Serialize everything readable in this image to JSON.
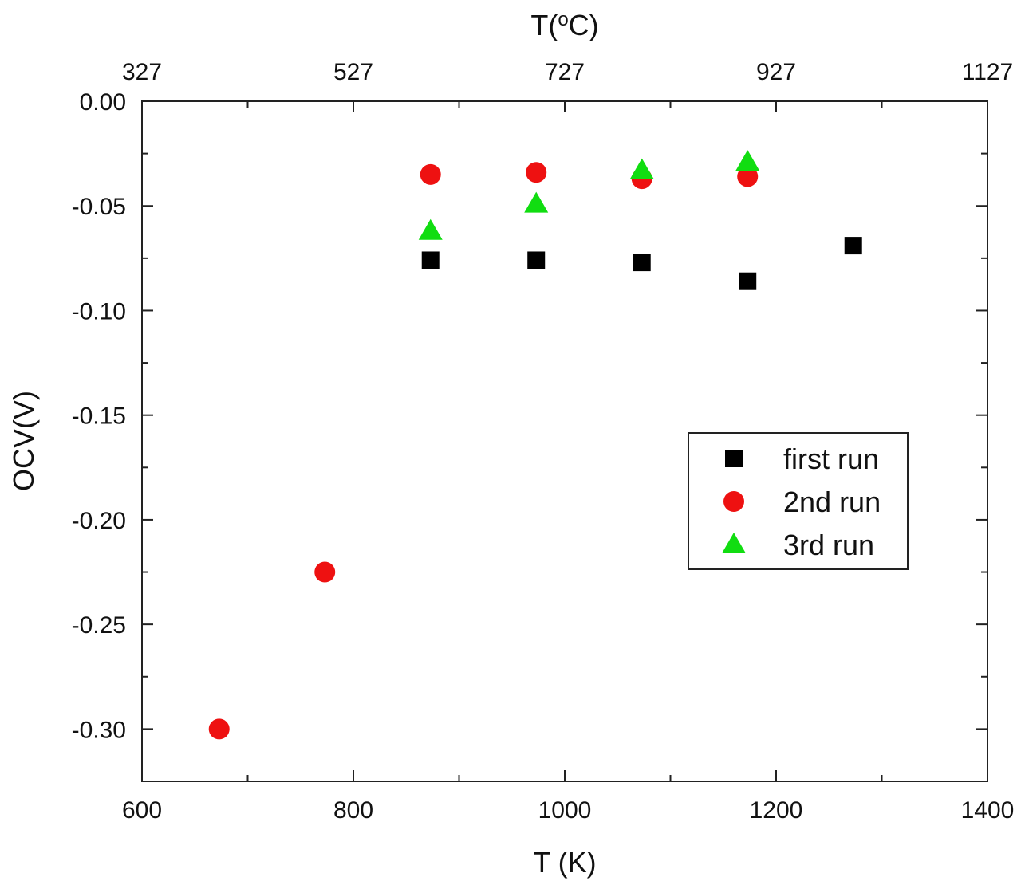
{
  "chart_data": {
    "type": "scatter",
    "title": "",
    "xlabel": "T (K)",
    "ylabel": "OCV(V)",
    "top_xlabel_prefix": "T(",
    "top_xlabel_sup": "o",
    "top_xlabel_suffix": "C)",
    "xlim": [
      600,
      1400
    ],
    "ylim": [
      -0.325,
      0.0
    ],
    "xticks": [
      600,
      800,
      1000,
      1200,
      1400
    ],
    "xtick_labels": [
      "600",
      "800",
      "1000",
      "1200",
      "1400"
    ],
    "top_xtick_labels": [
      "327",
      "527",
      "727",
      "927",
      "1127"
    ],
    "yticks": [
      0,
      -0.05,
      -0.1,
      -0.15,
      -0.2,
      -0.25,
      -0.3
    ],
    "ytick_labels": [
      "0.00",
      "-0.05",
      "-0.10",
      "-0.15",
      "-0.20",
      "-0.25",
      "-0.30"
    ],
    "grid": false,
    "legend_position": "center-right",
    "series": [
      {
        "name": "first run",
        "marker": "square",
        "color": "#000000",
        "x": [
          873,
          973,
          1073,
          1173,
          1273
        ],
        "y": [
          -0.076,
          -0.076,
          -0.077,
          -0.086,
          -0.069
        ]
      },
      {
        "name": "2nd run",
        "marker": "circle",
        "color": "#ee1111",
        "x": [
          673,
          773,
          873,
          973,
          1073,
          1173
        ],
        "y": [
          -0.3,
          -0.225,
          -0.035,
          -0.034,
          -0.037,
          -0.036
        ]
      },
      {
        "name": "3rd run",
        "marker": "triangle",
        "color": "#11dd11",
        "x": [
          873,
          973,
          1073,
          1173
        ],
        "y": [
          -0.062,
          -0.049,
          -0.033,
          -0.029
        ]
      }
    ]
  }
}
